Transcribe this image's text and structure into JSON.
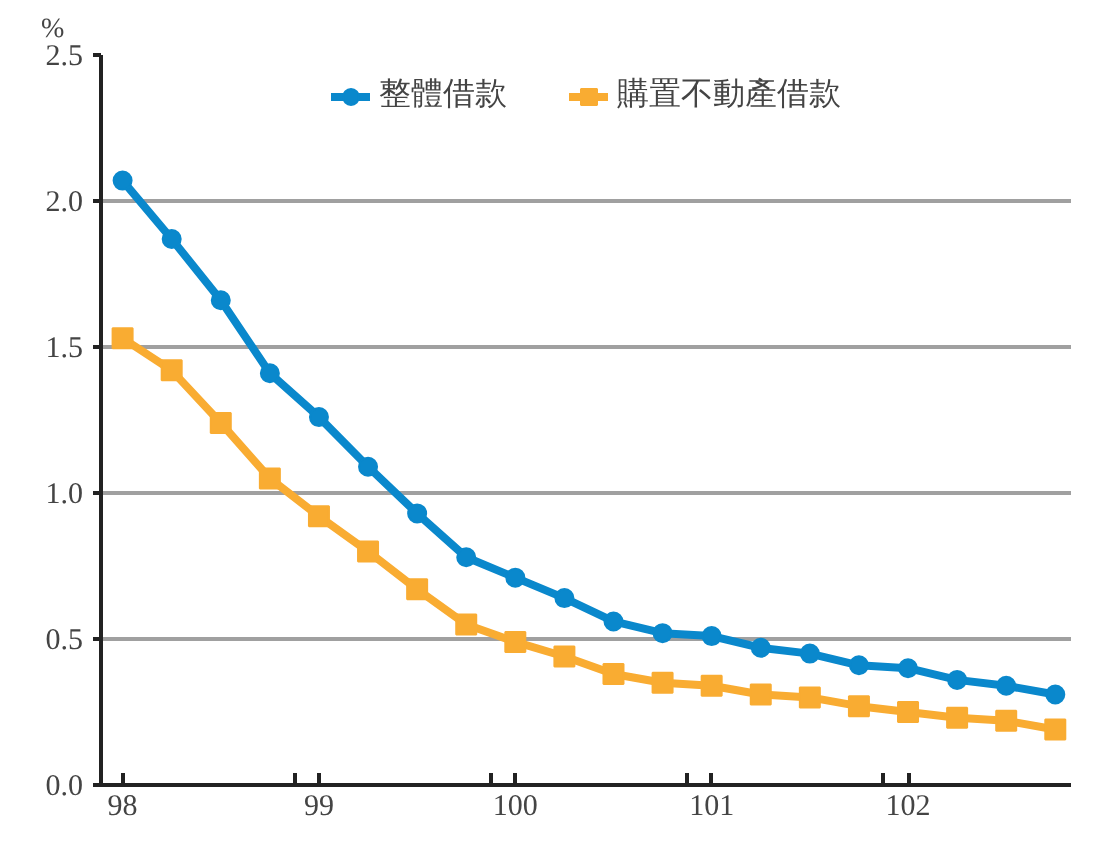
{
  "chart_data": {
    "type": "line",
    "ylabel": "%",
    "x": [
      98,
      98.25,
      98.5,
      98.75,
      99,
      99.25,
      99.5,
      99.75,
      100,
      100.25,
      100.5,
      100.75,
      101,
      101.25,
      101.5,
      101.75,
      102,
      102.25,
      102.5,
      102.75
    ],
    "series": [
      {
        "name": "整體借款",
        "color": "#0a88cc",
        "marker": "circle",
        "values": [
          2.07,
          1.87,
          1.66,
          1.41,
          1.26,
          1.09,
          0.93,
          0.78,
          0.71,
          0.64,
          0.56,
          0.52,
          0.51,
          0.47,
          0.45,
          0.41,
          0.4,
          0.36,
          0.34,
          0.31
        ]
      },
      {
        "name": "購置不動產借款",
        "color": "#f9ac32",
        "marker": "square",
        "values": [
          1.53,
          1.42,
          1.24,
          1.05,
          0.92,
          0.8,
          0.67,
          0.55,
          0.49,
          0.44,
          0.38,
          0.35,
          0.34,
          0.31,
          0.3,
          0.27,
          0.25,
          0.23,
          0.22,
          0.19
        ]
      }
    ],
    "xlim": [
      97.89,
      102.83
    ],
    "xticks": [
      98,
      {
        "value": 98.875,
        "label": null
      },
      99,
      {
        "value": 99.875,
        "label": null
      },
      100,
      {
        "value": 100.875,
        "label": null
      },
      101,
      {
        "value": 101.875,
        "label": null
      },
      102
    ],
    "ylim": [
      0,
      2.5
    ],
    "yticks": [
      {
        "value": 0,
        "label": "0.0"
      },
      {
        "value": 0.5,
        "label": "0.5"
      },
      {
        "value": 1,
        "label": "1.0"
      },
      {
        "value": 1.5,
        "label": "1.5"
      },
      {
        "value": 2,
        "label": "2.0"
      },
      {
        "value": 2.5,
        "label": "2.5"
      }
    ],
    "grid": "y",
    "legend": "top",
    "line_style": "solid"
  }
}
